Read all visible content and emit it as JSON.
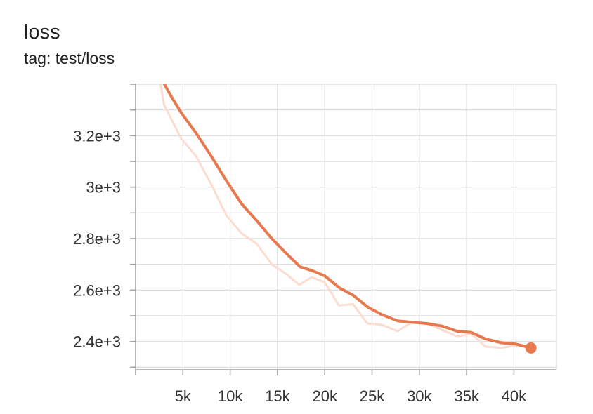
{
  "header": {
    "title": "loss",
    "subtitle": "tag: test/loss"
  },
  "chart_data": {
    "type": "line",
    "title": "loss",
    "subtitle": "tag: test/loss",
    "xlabel": "",
    "ylabel": "",
    "xlim": [
      0,
      44500
    ],
    "ylim": [
      2290,
      3400
    ],
    "x_ticks": [
      5000,
      10000,
      15000,
      20000,
      25000,
      30000,
      35000,
      40000
    ],
    "x_tick_labels": [
      "5k",
      "10k",
      "15k",
      "20k",
      "25k",
      "30k",
      "35k",
      "40k"
    ],
    "y_ticks": [
      2400,
      2600,
      2800,
      3000,
      3200
    ],
    "y_tick_labels": [
      "2.4e+3",
      "2.6e+3",
      "2.8e+3",
      "3e+3",
      "3.2e+3"
    ],
    "grid": true,
    "colors": {
      "smoothed": "#e8784e",
      "raw": "#fcdcd0",
      "grid": "#d9d9d9",
      "axis": "#9e9e9e"
    },
    "series": [
      {
        "role": "raw",
        "x": [
          2600,
          3000,
          4800,
          6400,
          8000,
          9600,
          11200,
          12800,
          14400,
          16000,
          17300,
          18600,
          20000,
          21500,
          23000,
          24500,
          26000,
          27700,
          29200,
          30800,
          32400,
          34000,
          35500,
          37000,
          38700,
          40200,
          41800
        ],
        "y": [
          3410,
          3320,
          3190,
          3120,
          3010,
          2890,
          2820,
          2780,
          2700,
          2660,
          2620,
          2650,
          2630,
          2540,
          2545,
          2470,
          2465,
          2440,
          2475,
          2470,
          2445,
          2420,
          2430,
          2380,
          2375,
          2385,
          2380
        ]
      },
      {
        "role": "smoothed",
        "x": [
          2900,
          3800,
          4800,
          6400,
          8000,
          9600,
          11200,
          12800,
          14400,
          16000,
          17400,
          18700,
          20000,
          21500,
          23000,
          24500,
          26000,
          27700,
          29200,
          30800,
          32400,
          34000,
          35500,
          37000,
          38700,
          40200,
          41800
        ],
        "y": [
          3410,
          3350,
          3290,
          3210,
          3120,
          3025,
          2935,
          2870,
          2800,
          2740,
          2690,
          2675,
          2655,
          2610,
          2580,
          2535,
          2505,
          2480,
          2475,
          2470,
          2460,
          2440,
          2435,
          2410,
          2395,
          2390,
          2375
        ]
      }
    ],
    "last_point": {
      "x": 41800,
      "y": 2375
    }
  }
}
